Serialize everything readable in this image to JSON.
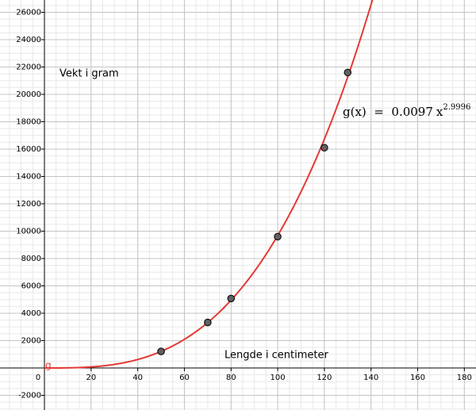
{
  "chart_data": {
    "type": "scatter",
    "y_label": "Vekt i gram",
    "x_label": "Lengde i centimeter",
    "x": [
      50,
      70,
      80,
      100,
      120,
      130
    ],
    "values": [
      1210,
      3330,
      5080,
      9600,
      16100,
      21600
    ],
    "point_color": "#616161",
    "curve": {
      "name": "g",
      "formula_prefix": "g(x)  =  ",
      "coefficient": 0.0097,
      "variable": "x",
      "exponent": 2.9996,
      "color": "#e53935"
    },
    "xlim": [
      -19.05,
      185
    ],
    "ylim": [
      -3072,
      26899
    ],
    "xticks": [
      0,
      20,
      40,
      60,
      80,
      100,
      120,
      140,
      160,
      180
    ],
    "yticks": [
      -2000,
      2000,
      4000,
      6000,
      8000,
      10000,
      12000,
      14000,
      16000,
      18000,
      20000,
      22000,
      24000,
      26000
    ],
    "grid": true
  }
}
